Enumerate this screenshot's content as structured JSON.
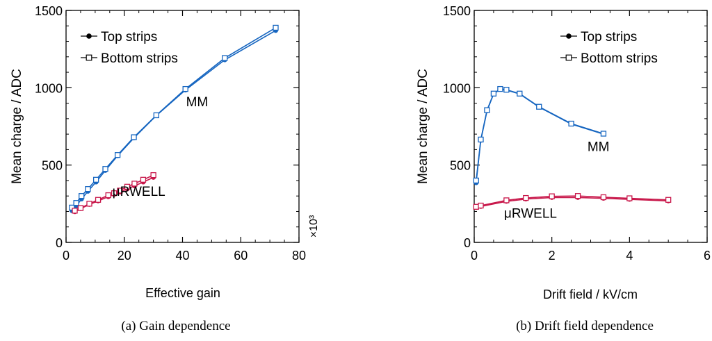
{
  "chart_data": [
    {
      "type": "line",
      "caption": "(a) Gain dependence",
      "xlabel": "Effective gain",
      "ylabel": "Mean charge / ADC",
      "x_multiplier": "×10³",
      "xlim": [
        0,
        80
      ],
      "ylim": [
        0,
        1500
      ],
      "x_ticks": [
        "0",
        "20",
        "40",
        "60",
        "80"
      ],
      "y_ticks": [
        "0",
        "500",
        "1000",
        "1500"
      ],
      "legend": {
        "position": "top-left",
        "entries": [
          {
            "label": "Top strips",
            "marker": "filled-circle"
          },
          {
            "label": "Bottom strips",
            "marker": "open-square"
          }
        ]
      },
      "annotations": [
        {
          "text": "MM",
          "x": 45,
          "y": 880
        },
        {
          "text": "μRWELL",
          "x": 25,
          "y": 300
        }
      ],
      "series": [
        {
          "group": "MM",
          "strip": "Top strips",
          "color": "#1565c0",
          "x": [
            2,
            3.5,
            5.3,
            7.5,
            10.3,
            13.5,
            17.7,
            23.3,
            31,
            41,
            54.5,
            72
          ],
          "y": [
            205,
            235,
            280,
            330,
            390,
            465,
            560,
            675,
            820,
            985,
            1180,
            1370
          ]
        },
        {
          "group": "MM",
          "strip": "Bottom strips",
          "color": "#1565c0",
          "x": [
            2,
            3.5,
            5.3,
            7.5,
            10.3,
            13.5,
            17.7,
            23.3,
            31,
            41,
            54.5,
            72
          ],
          "y": [
            225,
            255,
            300,
            345,
            405,
            475,
            565,
            680,
            822,
            992,
            1192,
            1388
          ]
        },
        {
          "group": "μRWELL",
          "strip": "Top strips",
          "color": "#c8174a",
          "x": [
            3,
            5,
            8,
            11,
            14.5,
            16.5,
            18.5,
            21,
            23.5,
            26.5,
            30
          ],
          "y": [
            198,
            218,
            245,
            268,
            295,
            310,
            325,
            345,
            365,
            390,
            420
          ]
        },
        {
          "group": "μRWELL",
          "strip": "Bottom strips",
          "color": "#c8174a",
          "x": [
            3,
            5,
            8,
            11,
            14.5,
            16.5,
            18.5,
            21,
            23.5,
            26.5,
            30
          ],
          "y": [
            205,
            222,
            250,
            275,
            305,
            318,
            335,
            360,
            380,
            405,
            435
          ]
        }
      ]
    },
    {
      "type": "line",
      "caption": "(b) Drift field dependence",
      "xlabel": "Drift field / kV/cm",
      "ylabel": "Mean charge / ADC",
      "xlim": [
        0,
        6
      ],
      "ylim": [
        0,
        1500
      ],
      "x_ticks": [
        "0",
        "2",
        "4",
        "6"
      ],
      "y_ticks": [
        "0",
        "500",
        "1000",
        "1500"
      ],
      "legend": {
        "position": "top-right",
        "entries": [
          {
            "label": "Top strips",
            "marker": "filled-circle"
          },
          {
            "label": "Bottom strips",
            "marker": "open-square"
          }
        ]
      },
      "annotations": [
        {
          "text": "MM",
          "x": 3.2,
          "y": 590
        },
        {
          "text": "μRWELL",
          "x": 1.45,
          "y": 160
        }
      ],
      "series": [
        {
          "group": "MM",
          "strip": "Top strips",
          "color": "#1565c0",
          "x": [
            0.05,
            0.17,
            0.33,
            0.5,
            0.67,
            0.83,
            1.17,
            1.67,
            2.5,
            3.33
          ],
          "y": [
            385,
            660,
            850,
            960,
            990,
            985,
            960,
            875,
            765,
            700
          ]
        },
        {
          "group": "MM",
          "strip": "Bottom strips",
          "color": "#1565c0",
          "x": [
            0.05,
            0.17,
            0.33,
            0.5,
            0.67,
            0.83,
            1.17,
            1.67,
            2.5,
            3.33
          ],
          "y": [
            400,
            665,
            855,
            962,
            992,
            987,
            962,
            877,
            768,
            703
          ]
        },
        {
          "group": "μRWELL",
          "strip": "Top strips",
          "color": "#c8174a",
          "x": [
            0.05,
            0.17,
            0.83,
            1.33,
            2,
            2.67,
            3.33,
            4,
            5
          ],
          "y": [
            225,
            232,
            265,
            280,
            290,
            290,
            285,
            278,
            268
          ]
        },
        {
          "group": "μRWELL",
          "strip": "Bottom strips",
          "color": "#c8174a",
          "x": [
            0.05,
            0.17,
            0.83,
            1.33,
            2,
            2.67,
            3.33,
            4,
            5
          ],
          "y": [
            230,
            238,
            272,
            287,
            298,
            300,
            292,
            285,
            275
          ]
        }
      ]
    }
  ]
}
